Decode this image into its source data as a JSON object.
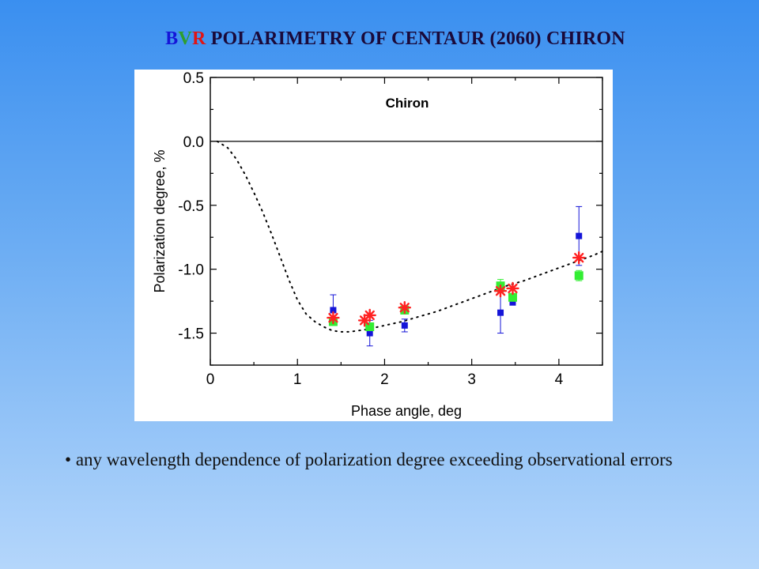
{
  "slide": {
    "title_b": "B",
    "title_v": "V",
    "title_r": "R",
    "title_rest": " POLARIMETRY OF  CENTAUR  (2060) CHIRON",
    "bullet_marker": "•",
    "bullet_text": " any wavelength dependence of polarization degree exceeding observational errors"
  },
  "colors": {
    "B": "#1515d8",
    "V": "#2e9e2e",
    "R": "#e01515",
    "V_marker": "#33ee33",
    "R_marker": "#ff2222"
  },
  "chart_data": {
    "type": "scatter",
    "title": "Chiron",
    "xlabel": "Phase angle, deg",
    "ylabel": "Polarization degree, %",
    "xlim": [
      0,
      4.5
    ],
    "ylim": [
      -1.75,
      0.5
    ],
    "x_ticks": [
      "0",
      "1",
      "2",
      "3",
      "4"
    ],
    "y_ticks": [
      "0.5",
      "0.0",
      "-0.5",
      "-1.0",
      "-1.5"
    ],
    "x_tick_values": [
      0,
      1,
      2,
      3,
      4
    ],
    "y_tick_values": [
      0.5,
      0.0,
      -0.5,
      -1.0,
      -1.5
    ],
    "grid": false,
    "zero_line": 0,
    "series": [
      {
        "marker": "square",
        "color": "#1515d8",
        "points": [
          {
            "x": 1.41,
            "y": -1.32,
            "err": 0.12
          },
          {
            "x": 1.83,
            "y": -1.5,
            "err": 0.1
          },
          {
            "x": 2.23,
            "y": -1.44,
            "err": 0.05
          },
          {
            "x": 3.33,
            "y": -1.34,
            "err": 0.16
          },
          {
            "x": 3.47,
            "y": -1.26,
            "err": 0.02
          },
          {
            "x": 4.23,
            "y": -0.74,
            "err": 0.23
          }
        ]
      },
      {
        "marker": "square",
        "color": "#33ee33",
        "points": [
          {
            "x": 1.41,
            "y": -1.41,
            "err": 0.03
          },
          {
            "x": 1.83,
            "y": -1.45,
            "err": 0.03
          },
          {
            "x": 2.23,
            "y": -1.32,
            "err": 0.03
          },
          {
            "x": 3.33,
            "y": -1.13,
            "err": 0.05
          },
          {
            "x": 3.47,
            "y": -1.22,
            "err": 0.03
          },
          {
            "x": 4.23,
            "y": -1.05,
            "err": 0.04
          }
        ]
      },
      {
        "marker": "star",
        "color": "#ff2222",
        "points": [
          {
            "x": 1.41,
            "y": -1.38
          },
          {
            "x": 1.77,
            "y": -1.4
          },
          {
            "x": 1.83,
            "y": -1.36
          },
          {
            "x": 2.23,
            "y": -1.3
          },
          {
            "x": 3.33,
            "y": -1.17
          },
          {
            "x": 3.47,
            "y": -1.15
          },
          {
            "x": 4.23,
            "y": -0.91
          }
        ]
      }
    ],
    "fit_curve": {
      "style": "dotted",
      "points": [
        [
          0.08,
          0.0
        ],
        [
          0.2,
          -0.05
        ],
        [
          0.3,
          -0.14
        ],
        [
          0.4,
          -0.26
        ],
        [
          0.5,
          -0.4
        ],
        [
          0.6,
          -0.55
        ],
        [
          0.7,
          -0.72
        ],
        [
          0.8,
          -0.9
        ],
        [
          0.9,
          -1.08
        ],
        [
          1.0,
          -1.24
        ],
        [
          1.1,
          -1.35
        ],
        [
          1.2,
          -1.41
        ],
        [
          1.3,
          -1.45
        ],
        [
          1.4,
          -1.48
        ],
        [
          1.5,
          -1.49
        ],
        [
          1.6,
          -1.49
        ],
        [
          1.8,
          -1.47
        ],
        [
          2.0,
          -1.44
        ],
        [
          2.2,
          -1.41
        ],
        [
          2.4,
          -1.37
        ],
        [
          2.6,
          -1.33
        ],
        [
          2.8,
          -1.28
        ],
        [
          3.0,
          -1.23
        ],
        [
          3.2,
          -1.18
        ],
        [
          3.4,
          -1.13
        ],
        [
          3.6,
          -1.09
        ],
        [
          3.8,
          -1.04
        ],
        [
          4.0,
          -0.99
        ],
        [
          4.2,
          -0.94
        ],
        [
          4.4,
          -0.89
        ],
        [
          4.5,
          -0.86
        ]
      ]
    }
  }
}
